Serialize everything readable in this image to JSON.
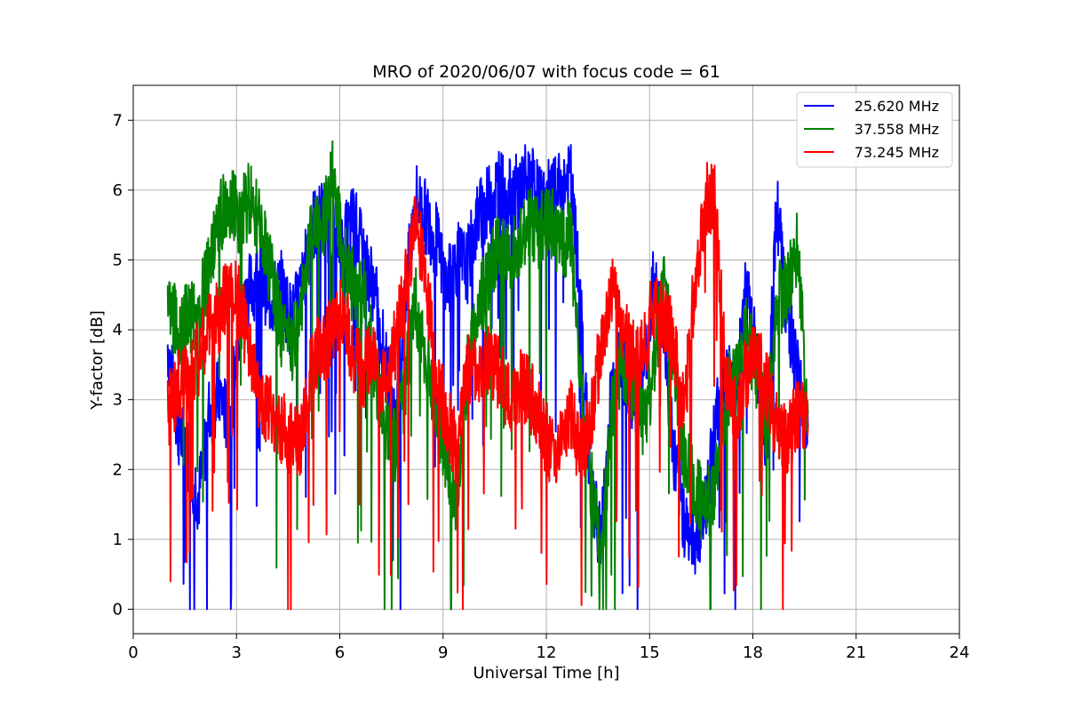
{
  "chart_data": {
    "type": "line",
    "title": "MRO of 2020/06/07 with focus code = 61",
    "xlabel": "Universal Time [h]",
    "ylabel": "Y-factor [dB]",
    "xlim": [
      0,
      24
    ],
    "ylim": [
      -0.35,
      7.5
    ],
    "xticks": [
      0,
      3,
      6,
      9,
      12,
      15,
      18,
      21,
      24
    ],
    "yticks": [
      0,
      1,
      2,
      3,
      4,
      5,
      6,
      7
    ],
    "grid": true,
    "legend_position": "top-right",
    "x_coverage": [
      1.0,
      19.7
    ],
    "series": [
      {
        "name": "25.620 MHz",
        "color": "#0000ff",
        "x": [
          1.0,
          1.3,
          1.6,
          1.9,
          2.2,
          2.5,
          2.8,
          3.1,
          3.4,
          3.7,
          4.0,
          4.3,
          4.6,
          4.9,
          5.2,
          5.5,
          5.8,
          6.1,
          6.4,
          6.7,
          7.0,
          7.3,
          7.6,
          7.9,
          8.2,
          8.5,
          8.8,
          9.1,
          9.4,
          9.7,
          10.0,
          10.3,
          10.6,
          10.9,
          11.2,
          11.5,
          11.8,
          12.1,
          12.4,
          12.7,
          13.0,
          13.3,
          13.6,
          13.9,
          14.2,
          14.5,
          14.8,
          15.1,
          15.4,
          15.7,
          16.0,
          16.3,
          16.6,
          16.9,
          17.2,
          17.5,
          17.8,
          18.1,
          18.4,
          18.7,
          19.0,
          19.3,
          19.6
        ],
        "y": [
          3.8,
          2.6,
          2.2,
          1.6,
          2.8,
          3.1,
          2.6,
          4.2,
          4.6,
          4.8,
          4.4,
          4.6,
          4.1,
          4.6,
          5.5,
          5.6,
          5.4,
          5.2,
          5.6,
          5.0,
          4.6,
          3.6,
          2.6,
          4.4,
          5.9,
          5.6,
          5.3,
          4.6,
          5.0,
          4.9,
          5.6,
          5.8,
          6.1,
          5.9,
          6.0,
          6.2,
          5.8,
          5.9,
          6.0,
          6.2,
          4.3,
          1.6,
          1.0,
          3.2,
          3.6,
          2.8,
          3.3,
          4.6,
          4.1,
          2.2,
          1.3,
          1.0,
          1.4,
          2.6,
          3.4,
          3.1,
          4.6,
          3.6,
          2.4,
          5.8,
          4.2,
          3.3,
          2.6
        ]
      },
      {
        "name": "37.558 MHz",
        "color": "#008000",
        "x": [
          1.0,
          1.3,
          1.6,
          1.9,
          2.2,
          2.5,
          2.8,
          3.1,
          3.4,
          3.7,
          4.0,
          4.3,
          4.6,
          4.9,
          5.2,
          5.5,
          5.8,
          6.1,
          6.4,
          6.7,
          7.0,
          7.3,
          7.6,
          7.9,
          8.2,
          8.5,
          8.8,
          9.1,
          9.4,
          9.7,
          10.0,
          10.3,
          10.6,
          10.9,
          11.2,
          11.5,
          11.8,
          12.1,
          12.4,
          12.7,
          13.0,
          13.3,
          13.6,
          13.9,
          14.2,
          14.5,
          14.8,
          15.1,
          15.4,
          15.7,
          16.0,
          16.3,
          16.6,
          16.9,
          17.2,
          17.5,
          17.8,
          18.1,
          18.4,
          18.7,
          19.0,
          19.3,
          19.6
        ],
        "y": [
          4.4,
          4.0,
          4.2,
          4.3,
          4.8,
          5.6,
          5.8,
          5.6,
          5.9,
          5.4,
          4.8,
          4.0,
          3.7,
          4.4,
          5.5,
          5.5,
          6.2,
          5.0,
          4.6,
          4.6,
          3.4,
          2.6,
          2.3,
          3.2,
          4.4,
          3.6,
          2.9,
          2.2,
          1.6,
          3.4,
          4.2,
          4.8,
          5.2,
          5.0,
          5.3,
          5.6,
          5.4,
          5.6,
          5.2,
          5.4,
          3.2,
          1.8,
          0.7,
          2.8,
          3.6,
          3.2,
          2.6,
          3.4,
          4.6,
          3.6,
          2.2,
          1.8,
          1.4,
          1.7,
          3.0,
          3.4,
          4.0,
          3.4,
          2.6,
          4.4,
          4.6,
          5.2,
          2.8
        ]
      },
      {
        "name": "73.245 MHz",
        "color": "#ff0000",
        "x": [
          1.0,
          1.3,
          1.6,
          1.9,
          2.2,
          2.5,
          2.8,
          3.1,
          3.4,
          3.7,
          4.0,
          4.3,
          4.6,
          4.9,
          5.2,
          5.5,
          5.8,
          6.1,
          6.4,
          6.7,
          7.0,
          7.3,
          7.6,
          7.9,
          8.2,
          8.5,
          8.8,
          9.1,
          9.4,
          9.7,
          10.0,
          10.3,
          10.6,
          10.9,
          11.2,
          11.5,
          11.8,
          12.1,
          12.4,
          12.7,
          13.0,
          13.3,
          13.6,
          13.9,
          14.2,
          14.5,
          14.8,
          15.1,
          15.4,
          15.7,
          16.0,
          16.3,
          16.6,
          16.9,
          17.2,
          17.5,
          17.8,
          18.1,
          18.4,
          18.7,
          19.0,
          19.3,
          19.6
        ],
        "y": [
          2.8,
          3.2,
          3.3,
          3.6,
          4.0,
          4.2,
          4.6,
          4.4,
          3.6,
          3.0,
          2.8,
          2.6,
          2.4,
          2.4,
          3.6,
          3.8,
          3.9,
          4.3,
          3.6,
          3.4,
          3.6,
          3.2,
          3.8,
          4.6,
          5.6,
          4.8,
          3.2,
          2.8,
          2.2,
          3.4,
          3.4,
          3.6,
          3.4,
          3.0,
          3.2,
          3.1,
          2.7,
          2.3,
          2.4,
          2.8,
          2.2,
          2.8,
          3.8,
          4.6,
          4.0,
          3.6,
          3.6,
          4.4,
          4.2,
          3.8,
          2.8,
          4.6,
          5.8,
          6.0,
          3.4,
          2.7,
          3.4,
          3.6,
          3.2,
          2.6,
          2.4,
          2.8,
          2.6
        ]
      }
    ]
  }
}
